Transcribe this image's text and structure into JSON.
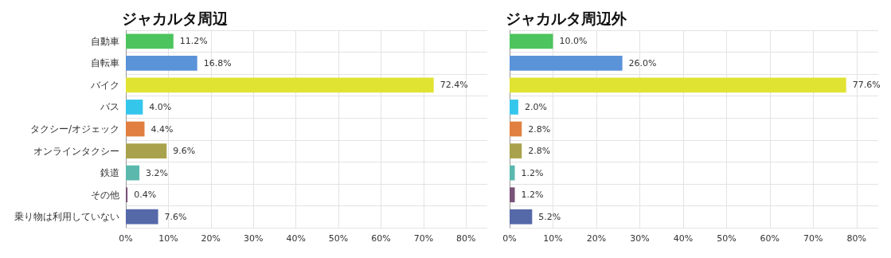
{
  "chart_data": [
    {
      "type": "bar",
      "orientation": "horizontal",
      "title": "ジャカルタ周辺",
      "categories": [
        "自動車",
        "自転車",
        "バイク",
        "バス",
        "タクシー/オジェック",
        "オンラインタクシー",
        "鉄道",
        "その他",
        "乗り物は利用していない"
      ],
      "values": [
        11.2,
        16.8,
        72.4,
        4.0,
        4.4,
        9.6,
        3.2,
        0.4,
        7.6
      ],
      "colors": [
        "#4dc45d",
        "#5b93d9",
        "#e1e332",
        "#35c6ec",
        "#e07f40",
        "#a9a24c",
        "#5bb8ad",
        "#7a5378",
        "#5568a8"
      ],
      "value_labels": [
        "11.2%",
        "16.8%",
        "72.4%",
        "4.0%",
        "4.4%",
        "9.6%",
        "3.2%",
        "0.4%",
        "7.6%"
      ],
      "xlim": [
        0,
        85
      ],
      "xticks": [
        {
          "value": 0,
          "label": "0%"
        },
        {
          "value": 10,
          "label": "10%"
        },
        {
          "value": 20,
          "label": "20%"
        },
        {
          "value": 30,
          "label": "30%"
        },
        {
          "value": 40,
          "label": "40%"
        },
        {
          "value": 50,
          "label": "50%"
        },
        {
          "value": 60,
          "label": "60%"
        },
        {
          "value": 70,
          "label": "70%"
        },
        {
          "value": 80,
          "label": "80%"
        }
      ],
      "grid": true
    },
    {
      "type": "bar",
      "orientation": "horizontal",
      "title": "ジャカルタ周辺外",
      "categories": [
        null,
        null,
        null,
        null,
        null,
        null,
        null,
        null,
        null
      ],
      "values": [
        10.0,
        26.0,
        77.6,
        2.0,
        2.8,
        2.8,
        1.2,
        1.2,
        5.2
      ],
      "colors": [
        "#4dc45d",
        "#5b93d9",
        "#e1e332",
        "#35c6ec",
        "#e07f40",
        "#a9a24c",
        "#5bb8ad",
        "#7a5378",
        "#5568a8"
      ],
      "value_labels": [
        "10.0%",
        "26.0%",
        "77.6%",
        "2.0%",
        "2.8%",
        "2.8%",
        "1.2%",
        "1.2%",
        "5.2%"
      ],
      "xlim": [
        0,
        85
      ],
      "xticks": [
        {
          "value": 0,
          "label": "0%"
        },
        {
          "value": 10,
          "label": "10%"
        },
        {
          "value": 20,
          "label": "20%"
        },
        {
          "value": 30,
          "label": "30%"
        },
        {
          "value": 40,
          "label": "40%"
        },
        {
          "value": 50,
          "label": "50%"
        },
        {
          "value": 60,
          "label": "60%"
        },
        {
          "value": 70,
          "label": "70%"
        },
        {
          "value": 80,
          "label": "80%"
        }
      ],
      "grid": true
    }
  ]
}
